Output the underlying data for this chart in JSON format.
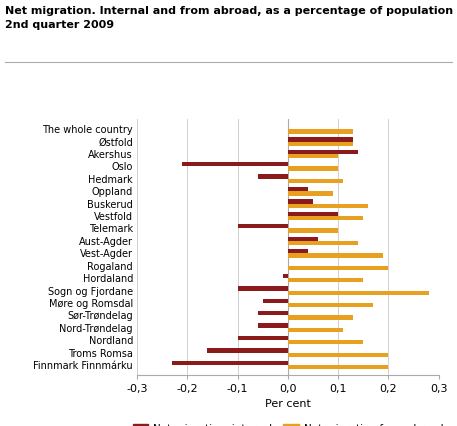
{
  "title_line1": "Net migration. Internal and from abroad, as a percentage of population",
  "title_line2": "2nd quarter 2009",
  "categories": [
    "The whole country",
    "Østfold",
    "Akershus",
    "Oslo",
    "Hedmark",
    "Oppland",
    "Buskerud",
    "Vestfold",
    "Telemark",
    "Aust-Agder",
    "Vest-Agder",
    "Rogaland",
    "Hordaland",
    "Sogn og Fjordane",
    "Møre og Romsdal",
    "Sør-Trøndelag",
    "Nord-Trøndelag",
    "Nordland",
    "Troms Romsa",
    "Finnmark Finnmárku"
  ],
  "internal": [
    0.0,
    0.13,
    0.14,
    -0.21,
    -0.06,
    0.04,
    0.05,
    0.1,
    -0.1,
    0.06,
    0.04,
    0.0,
    -0.01,
    -0.1,
    -0.05,
    -0.06,
    -0.06,
    -0.1,
    -0.16,
    -0.23
  ],
  "abroad": [
    0.13,
    0.13,
    0.1,
    0.1,
    0.11,
    0.09,
    0.16,
    0.15,
    0.1,
    0.14,
    0.19,
    0.2,
    0.15,
    0.28,
    0.17,
    0.13,
    0.11,
    0.15,
    0.2,
    0.2
  ],
  "color_internal": "#8B1A1A",
  "color_abroad": "#E8A020",
  "xlabel": "Per cent",
  "xlim": [
    -0.3,
    0.3
  ],
  "xticks": [
    -0.3,
    -0.2,
    -0.1,
    0.0,
    0.1,
    0.2,
    0.3
  ],
  "xtick_labels": [
    "-0,3",
    "-0,2",
    "-0,1",
    "0,0",
    "0,1",
    "0,2",
    "0,3"
  ],
  "legend_internal": "Net migration, internal",
  "legend_abroad": "Net migration from abroad",
  "background_color": "#ffffff",
  "grid_color": "#d0d0d0"
}
